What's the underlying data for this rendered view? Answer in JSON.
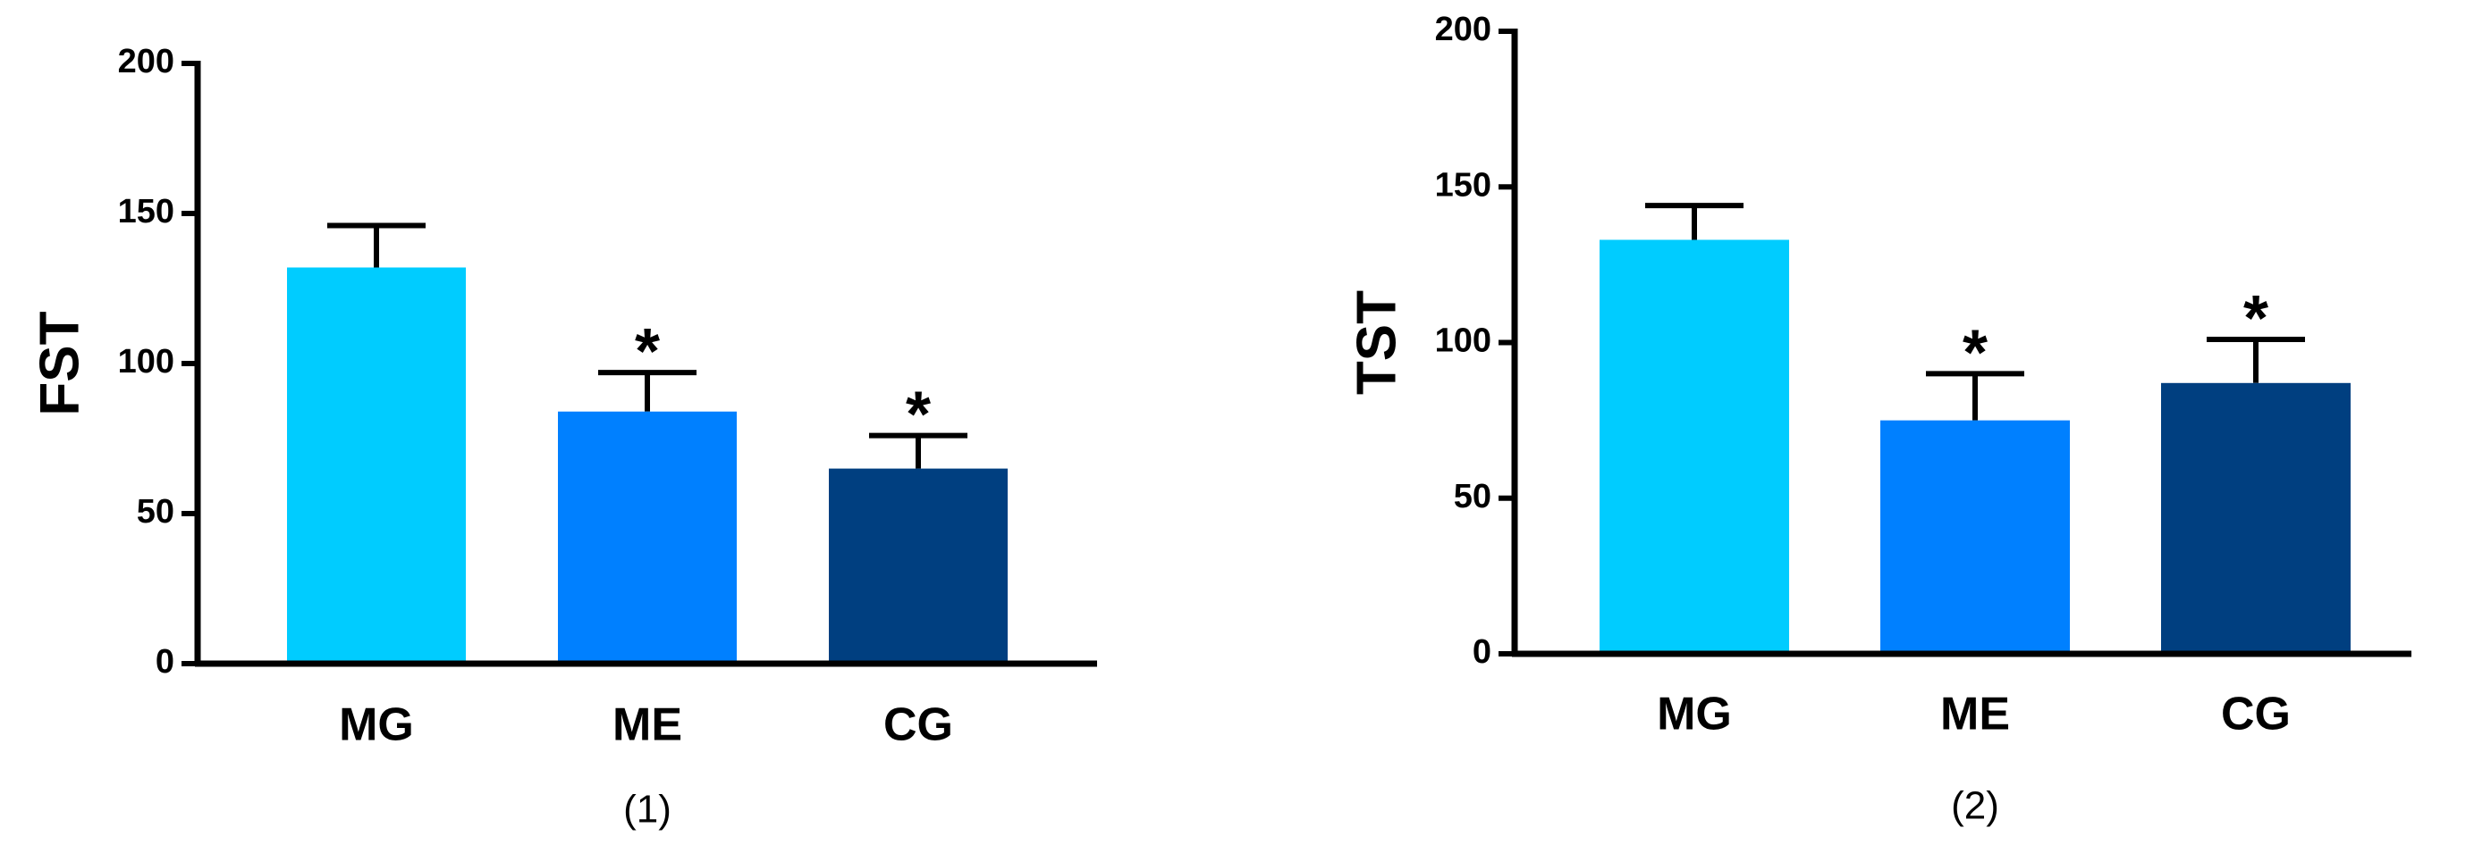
{
  "chart_data": [
    {
      "type": "bar",
      "ylabel": "FST",
      "caption": "(1)",
      "categories": [
        "MG",
        "ME",
        "CG"
      ],
      "values": [
        132,
        84,
        65
      ],
      "errors": [
        14,
        13,
        11
      ],
      "annotations": [
        null,
        "*",
        "*"
      ],
      "colors": [
        "#00ccff",
        "#0080ff",
        "#003f80"
      ],
      "ylim": [
        0,
        200
      ],
      "yticks": [
        0,
        50,
        100,
        150,
        200
      ]
    },
    {
      "type": "bar",
      "ylabel": "TST",
      "caption": "(2)",
      "categories": [
        "MG",
        "ME",
        "CG"
      ],
      "values": [
        133,
        75,
        87
      ],
      "errors": [
        11,
        15,
        14
      ],
      "annotations": [
        null,
        "*",
        "*"
      ],
      "colors": [
        "#00ccff",
        "#0080ff",
        "#003f80"
      ],
      "ylim": [
        0,
        200
      ],
      "yticks": [
        0,
        50,
        100,
        150,
        200
      ]
    }
  ]
}
